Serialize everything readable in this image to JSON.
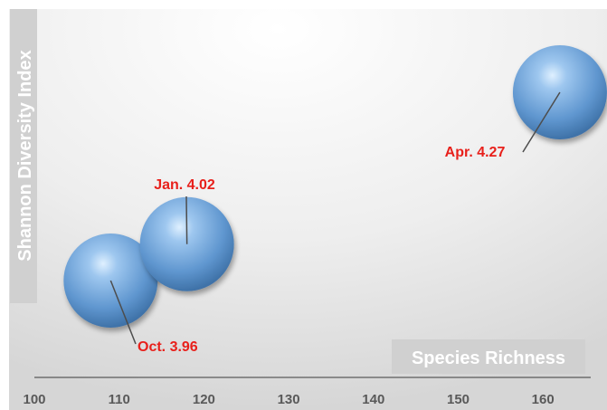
{
  "chart_data": {
    "type": "bubble",
    "xlabel": "Species Richness",
    "ylabel": "Shannon Diversity Index",
    "xlim": [
      100,
      166
    ],
    "x_ticks": [
      "100",
      "110",
      "120",
      "130",
      "140",
      "150",
      "160"
    ],
    "points": [
      {
        "label": "Oct.  3.96",
        "x": 109,
        "y": 3.96
      },
      {
        "label": "Jan. 4.02",
        "x": 118,
        "y": 4.02
      },
      {
        "label": "Apr. 4.27",
        "x": 162,
        "y": 4.27
      }
    ],
    "colors": {
      "bubble": "#6a9fd6",
      "label": "#e8201b",
      "axis_title_bg": "#d0d0d0",
      "plot_bg_center": "#ffffff",
      "plot_bg_edge": "#d9d9d9",
      "tick": "#595959"
    }
  }
}
